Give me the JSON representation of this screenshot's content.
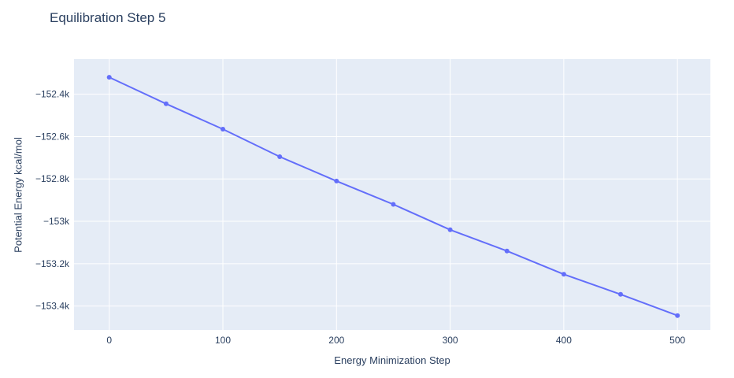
{
  "title": "Equilibration Step 5",
  "chart_data": {
    "type": "line",
    "title": "Equilibration Step 5",
    "xlabel": "Energy Minimization Step",
    "ylabel": "Potential Energy kcal/mol",
    "x": [
      0,
      50,
      100,
      150,
      200,
      250,
      300,
      350,
      400,
      450,
      500
    ],
    "y": [
      -152320,
      -152445,
      -152565,
      -152695,
      -152810,
      -152920,
      -153040,
      -153140,
      -153250,
      -153345,
      -153445
    ],
    "xlim": [
      -31,
      529
    ],
    "ylim": [
      -153513,
      -152234
    ],
    "x_ticks": [
      0,
      100,
      200,
      300,
      400,
      500
    ],
    "x_tick_labels": [
      "0",
      "100",
      "200",
      "300",
      "400",
      "500"
    ],
    "y_ticks": [
      -152400,
      -152600,
      -152800,
      -153000,
      -153200,
      -153400
    ],
    "y_tick_labels": [
      "−152.4k",
      "−152.6k",
      "−152.8k",
      "−153k",
      "−153.2k",
      "−153.4k"
    ],
    "line_color": "#636efa",
    "marker_color": "#636efa",
    "plot_bg": "#e5ecf6",
    "grid_color": "#ffffff",
    "font_color": "#2a3f5f",
    "grid": true,
    "legend": false,
    "marker_size": 6,
    "line_width": 2
  }
}
